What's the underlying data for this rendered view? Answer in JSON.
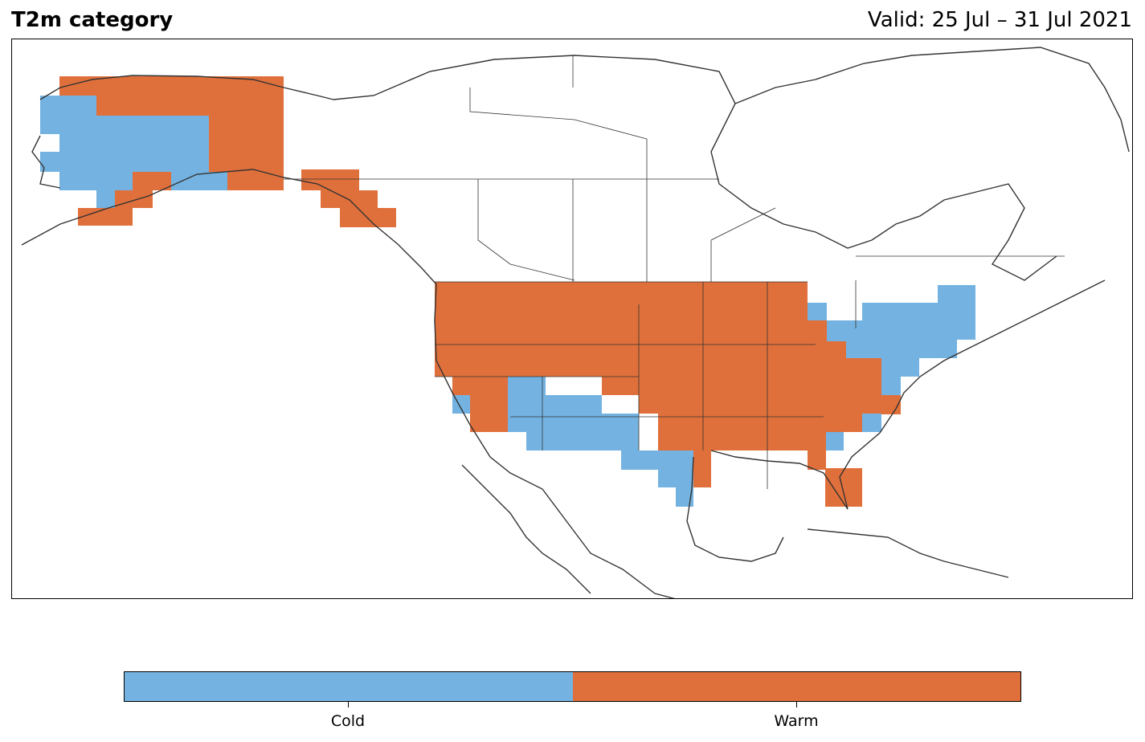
{
  "header": {
    "title": "T2m category",
    "valid": "Valid: 25 Jul – 31 Jul 2021"
  },
  "legend": {
    "categories": [
      {
        "label": "Cold",
        "color": "#74b3e1"
      },
      {
        "label": "Warm",
        "color": "#e0703b"
      }
    ]
  },
  "map": {
    "region": "North America",
    "coastline_color": "#333333"
  }
}
